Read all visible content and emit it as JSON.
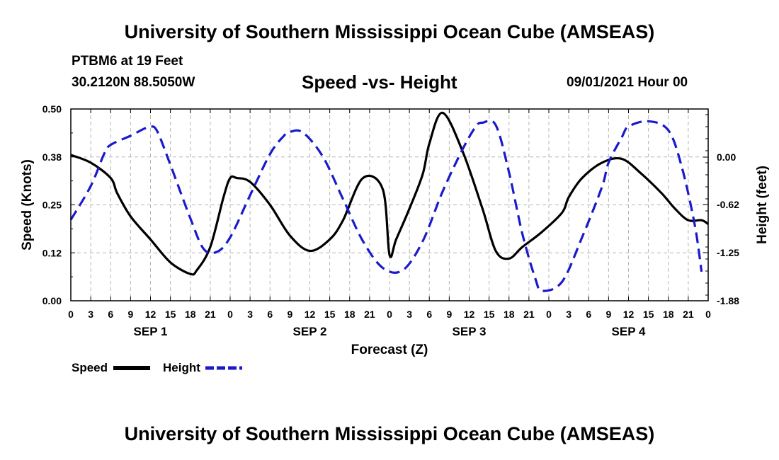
{
  "header": {
    "title": "University of Southern Mississippi Ocean Cube (AMSEAS)",
    "station": "PTBM6 at 19 Feet",
    "coords": "30.2120N  88.5050W",
    "chart_title": "Speed -vs- Height",
    "datetime": "09/01/2021 Hour 00"
  },
  "footer": {
    "title": "University of Southern Mississippi Ocean Cube (AMSEAS)"
  },
  "chart_data": {
    "type": "line",
    "title": "Speed -vs- Height",
    "xlabel": "Forecast (Z)",
    "ylabel": "Speed (Knots)",
    "y2label": "Height (feet)",
    "x_range": [
      0,
      96
    ],
    "ylim": [
      0,
      0.5
    ],
    "y2lim": [
      -1.88,
      0.63
    ],
    "y_ticks": [
      "0.00",
      "0.12",
      "0.25",
      "0.38",
      "0.50"
    ],
    "y_tick_values": [
      0,
      0.125,
      0.25,
      0.375,
      0.5
    ],
    "y2_ticks": [
      "0.00",
      "-0.62",
      "-1.25",
      "-1.88"
    ],
    "y2_tick_values": [
      0,
      -0.62,
      -1.25,
      -1.88
    ],
    "x_tick_labels": [
      "0",
      "3",
      "6",
      "9",
      "12",
      "15",
      "18",
      "21",
      "0",
      "3",
      "6",
      "9",
      "12",
      "15",
      "18",
      "21",
      "0",
      "3",
      "6",
      "9",
      "12",
      "15",
      "18",
      "21",
      "0",
      "3",
      "6",
      "9",
      "12",
      "15",
      "18",
      "21",
      "0"
    ],
    "day_labels": [
      "SEP 1",
      "SEP 2",
      "SEP 3",
      "SEP 4"
    ],
    "grid": true,
    "legend": [
      "Speed",
      "Height"
    ],
    "series": [
      {
        "name": "Speed",
        "color": "#000000",
        "dash": "solid",
        "axis": "left",
        "x": [
          0,
          3,
          6,
          7,
          9,
          12,
          15,
          18,
          19,
          21,
          23,
          24,
          25,
          27,
          30,
          33,
          36,
          39,
          41,
          44,
          47,
          48,
          49,
          51,
          53,
          54,
          56,
          59,
          62,
          64,
          66,
          68,
          71,
          74,
          75,
          77,
          80,
          83,
          86,
          89,
          91,
          93,
          95,
          96
        ],
        "values": [
          0.38,
          0.36,
          0.32,
          0.28,
          0.22,
          0.16,
          0.1,
          0.07,
          0.08,
          0.14,
          0.27,
          0.32,
          0.32,
          0.31,
          0.25,
          0.17,
          0.13,
          0.16,
          0.21,
          0.32,
          0.29,
          0.12,
          0.16,
          0.24,
          0.33,
          0.41,
          0.49,
          0.39,
          0.24,
          0.13,
          0.11,
          0.14,
          0.18,
          0.23,
          0.27,
          0.32,
          0.36,
          0.37,
          0.33,
          0.28,
          0.24,
          0.21,
          0.21,
          0.2
        ]
      },
      {
        "name": "Height",
        "color": "#1a1acc",
        "dash": "dashed",
        "axis": "right",
        "x": [
          0,
          3,
          5,
          6,
          9,
          11,
          12,
          13,
          15,
          18,
          20,
          22,
          24,
          27,
          30,
          32,
          33,
          35,
          38,
          41,
          44,
          47,
          50,
          53,
          56,
          59,
          61,
          62,
          64,
          66,
          68,
          70,
          71,
          74,
          77,
          80,
          81,
          83,
          84,
          87,
          90,
          92,
          94,
          95
        ],
        "values": [
          -0.82,
          -0.38,
          0.04,
          0.16,
          0.28,
          0.37,
          0.4,
          0.34,
          -0.1,
          -0.8,
          -1.2,
          -1.24,
          -1.05,
          -0.5,
          0.04,
          0.27,
          0.33,
          0.32,
          0.0,
          -0.55,
          -1.1,
          -1.45,
          -1.48,
          -1.1,
          -0.45,
          0.1,
          0.4,
          0.45,
          0.42,
          -0.2,
          -1.0,
          -1.6,
          -1.75,
          -1.63,
          -1.05,
          -0.39,
          -0.07,
          0.26,
          0.4,
          0.47,
          0.35,
          -0.12,
          -0.9,
          -1.5
        ]
      }
    ]
  }
}
